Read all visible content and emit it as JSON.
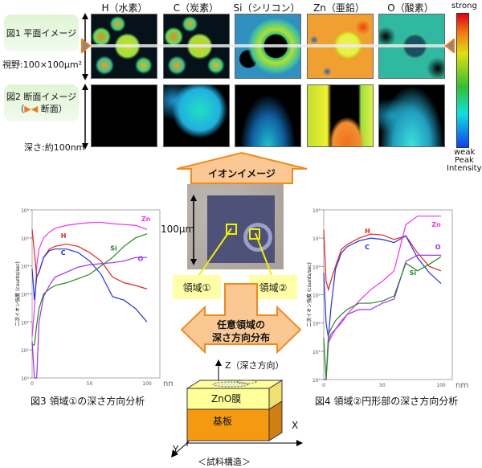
{
  "fig1_label": "図1 平面イメージ",
  "fov_label": "視野:100×100μm²",
  "fig2_label_line1": "図2 断面イメージ",
  "fig2_label_line2": "断面）",
  "fig2_label_paren": "（",
  "depth_label": "深さ:約100nm",
  "elements": [
    "H（水素）",
    "C（炭素）",
    "Si（シリコン）",
    "Zn（亜鉛）",
    "O（酸素）"
  ],
  "colorbar": {
    "strong": "strong",
    "weak": "weak",
    "peak": "Peak",
    "intensity": "Intensity"
  },
  "ion_image_label": "イオンイメージ",
  "scale_label": "100μm",
  "region1": "領域①",
  "region2": "領域②",
  "arbitrary_line1": "任意領域の",
  "arbitrary_line2": "深さ方向分布",
  "z_axis": "Z（深さ方向）",
  "x_axis": "X",
  "y_axis": "Y",
  "film_label": "ZnO膜",
  "substrate_label": "基板",
  "structure_label": "＜試料構造＞",
  "fig3_caption": "図3 領域①の深さ方向分析",
  "fig4_caption": "図4 領域②円形部の深さ方向分析",
  "colors": {
    "H": "#e8231f",
    "C": "#2233dd",
    "Si": "#228822",
    "O": "#9933ee",
    "Zn": "#ee33ee",
    "arrow": "#fbc894",
    "arrow_edge": "#f08a1c",
    "region": "#ffffa8"
  },
  "chart_data": [
    {
      "type": "line",
      "title": "図3 領域①の深さ方向分析",
      "xlabel": "nm",
      "ylabel": "二次イオン強度 (counts/sec)",
      "yscale": "log",
      "xlim": [
        0,
        100
      ],
      "ylim": [
        1,
        1000000
      ],
      "xticks": [
        "0",
        "50",
        "100"
      ],
      "yticks": [
        "10⁰",
        "10¹",
        "10²",
        "10³",
        "10⁴",
        "10⁵",
        "10⁶"
      ],
      "x": [
        0,
        2,
        4,
        6,
        10,
        15,
        20,
        30,
        40,
        50,
        60,
        70,
        80,
        90,
        100
      ],
      "series": [
        {
          "name": "Zn",
          "values": [
            30,
            300,
            10000,
            40000,
            100000,
            160000,
            220000,
            280000,
            320000,
            350000,
            360000,
            320000,
            300000,
            280000,
            200000
          ]
        },
        {
          "name": "H",
          "values": [
            200000,
            30000,
            4000,
            6000,
            20000,
            40000,
            50000,
            60000,
            50000,
            30000,
            15000,
            4000,
            2500,
            2000,
            1500
          ]
        },
        {
          "name": "C",
          "values": [
            8000,
            600,
            4000,
            6000,
            20000,
            35000,
            40000,
            40000,
            30000,
            15000,
            5000,
            800,
            600,
            300,
            100
          ]
        },
        {
          "name": "Si",
          "values": [
            15,
            15,
            80,
            300,
            1000,
            1500,
            2000,
            2500,
            3500,
            5000,
            10000,
            20000,
            50000,
            100000,
            140000
          ]
        },
        {
          "name": "O",
          "values": [
            20,
            1,
            1,
            100,
            800,
            2000,
            4000,
            6000,
            9000,
            11000,
            12000,
            13000,
            15000,
            20000,
            20000
          ]
        }
      ]
    },
    {
      "type": "line",
      "title": "図4 領域②円形部の深さ方向分析",
      "xlabel": "nm",
      "ylabel": "二次イオン強度 (counts/sec)",
      "yscale": "log",
      "xlim": [
        0,
        100
      ],
      "ylim": [
        1,
        1000000
      ],
      "xticks": [
        "0",
        "50",
        "100"
      ],
      "yticks": [
        "10⁰",
        "10¹",
        "10²",
        "10³",
        "10⁴",
        "10⁵",
        "10⁶"
      ],
      "x": [
        0,
        2,
        4,
        6,
        10,
        15,
        20,
        30,
        40,
        50,
        60,
        70,
        80,
        90,
        100
      ],
      "series": [
        {
          "name": "H",
          "values": [
            200000,
            3000,
            1500,
            3000,
            10000,
            40000,
            60000,
            100000,
            140000,
            130000,
            90000,
            120000,
            30000,
            10000,
            7000
          ]
        },
        {
          "name": "C",
          "values": [
            6000,
            100,
            30,
            300,
            8000,
            30000,
            50000,
            80000,
            100000,
            90000,
            70000,
            120000,
            20000,
            6000,
            2500
          ]
        },
        {
          "name": "Zn",
          "values": [
            1,
            1,
            20,
            30,
            60,
            120,
            200,
            600,
            1500,
            3000,
            7000,
            300000,
            600000,
            600000,
            600000
          ]
        },
        {
          "name": "O",
          "values": [
            1,
            1,
            20,
            40,
            60,
            100,
            200,
            300,
            300,
            500,
            700,
            15000,
            25000,
            25000,
            25000
          ]
        },
        {
          "name": "Si",
          "values": [
            30,
            1,
            40,
            60,
            120,
            200,
            300,
            500,
            500,
            600,
            900,
            13000,
            7000,
            12000,
            22000
          ]
        }
      ]
    }
  ]
}
